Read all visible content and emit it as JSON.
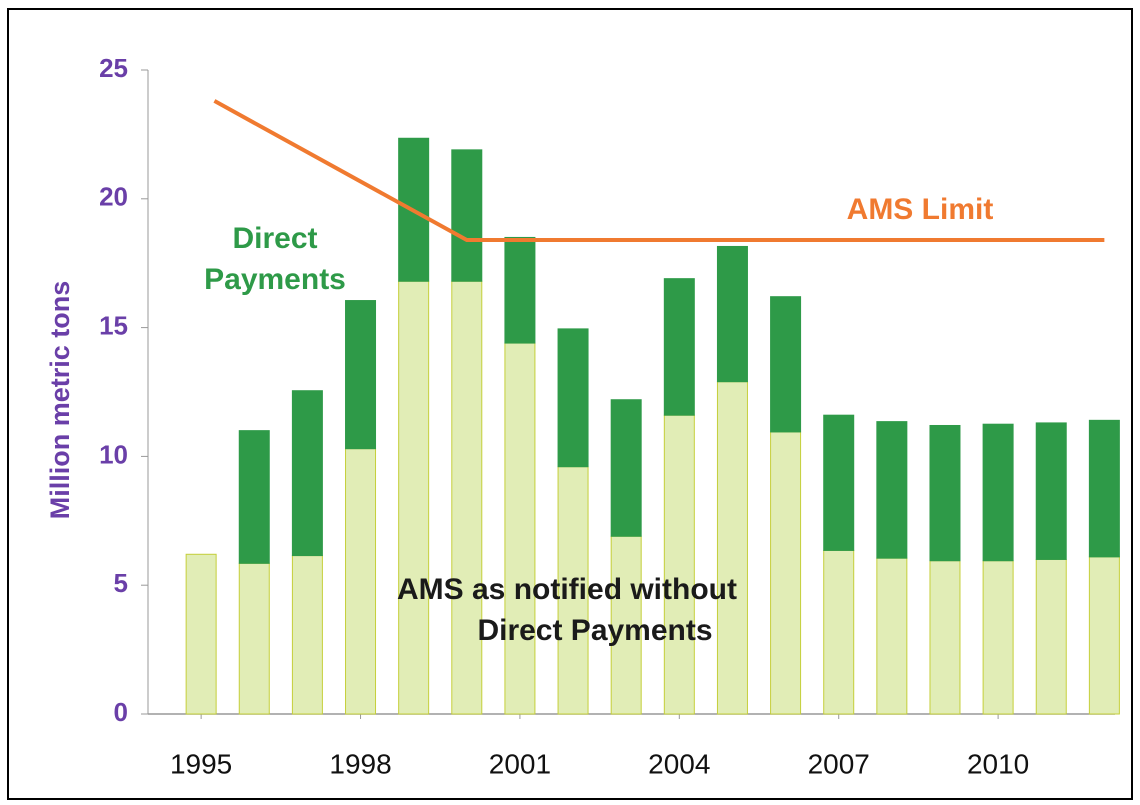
{
  "chart_data": {
    "type": "bar",
    "stacked": true,
    "y_label": "Million metric tons",
    "x": [
      1995,
      1996,
      1997,
      1998,
      1999,
      2000,
      2001,
      2002,
      2003,
      2004,
      2005,
      2006,
      2007,
      2008,
      2009,
      2010,
      2011,
      2012
    ],
    "xlim": [
      1994,
      2012.2
    ],
    "xticks": [
      1995,
      1998,
      2001,
      2004,
      2007,
      2010
    ],
    "ylim": [
      0,
      25
    ],
    "yticks": [
      0,
      5,
      10,
      15,
      20,
      25
    ],
    "series": [
      {
        "color": "#e1edb6",
        "edge": "#c5cf3a",
        "values": [
          6.2,
          5.85,
          6.15,
          10.3,
          16.8,
          16.8,
          14.4,
          9.6,
          6.9,
          11.6,
          12.9,
          10.95,
          6.35,
          6.05,
          5.95,
          5.95,
          6.0,
          6.1
        ]
      },
      {
        "color": "#2e9a48",
        "edge": "#2e9a48",
        "values": [
          0,
          5.15,
          6.4,
          5.75,
          5.55,
          5.1,
          4.1,
          5.35,
          5.3,
          5.3,
          5.25,
          5.25,
          5.25,
          5.3,
          5.25,
          5.3,
          5.3,
          5.3
        ]
      },
      {
        "name": "AMS Limit",
        "type": "line",
        "color": "#f07a30",
        "x": [
          1995.25,
          2000,
          2012
        ],
        "values": [
          23.8,
          18.4,
          18.4
        ]
      }
    ],
    "annotations": [
      {
        "lines": [
          "Direct",
          "Payments"
        ],
        "color": "#2e9a48"
      },
      {
        "lines": [
          "AMS  as notified without",
          "Direct Payments"
        ],
        "color": "#1a1a1a"
      }
    ]
  }
}
